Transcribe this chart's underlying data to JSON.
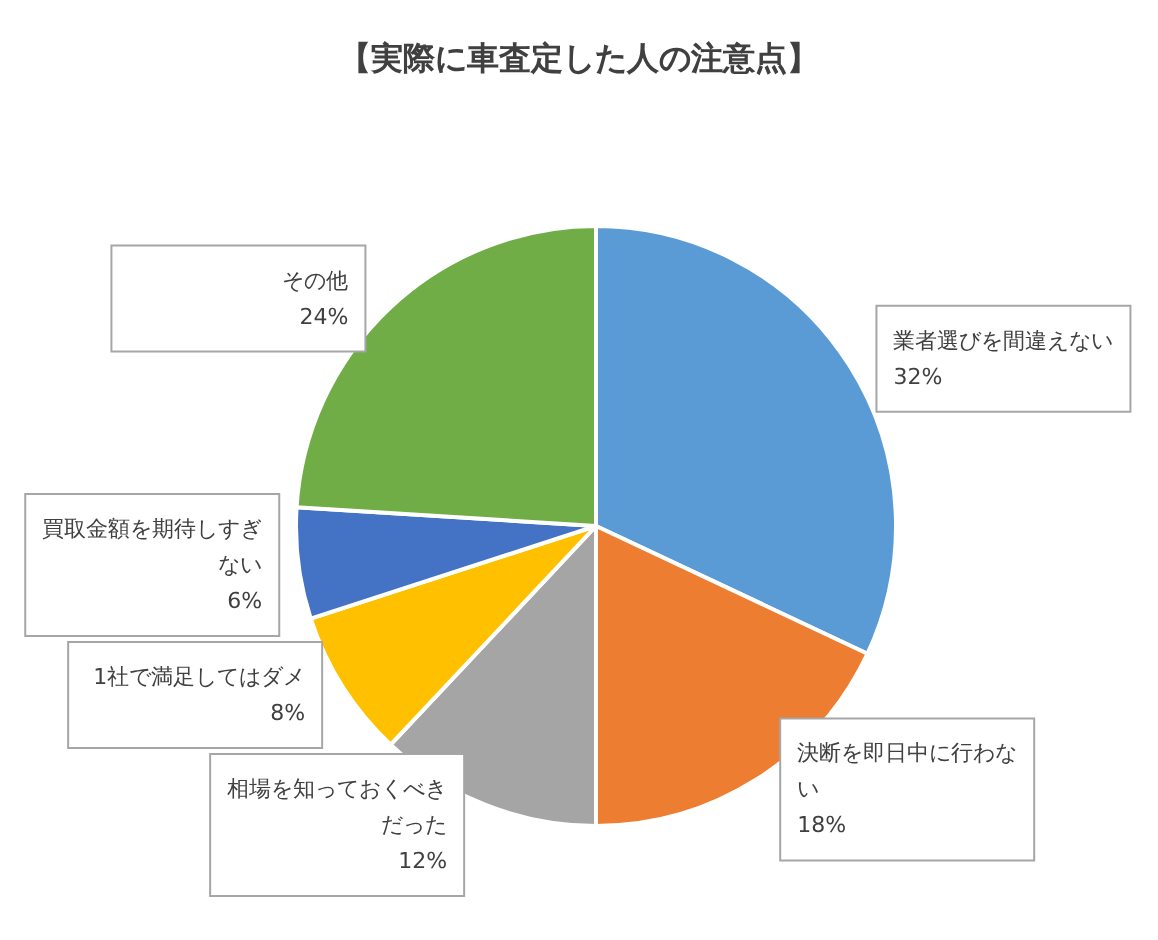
{
  "chart_data": {
    "type": "pie",
    "title": "【実際に車査定した人の注意点】",
    "categories": [
      "業者選びを間違えない",
      "決断を即日中に行わない",
      "相場を知っておくべきだった",
      "1社で満足してはダメ",
      "買取金額を期待しすぎない",
      "その他"
    ],
    "values": [
      32,
      18,
      12,
      8,
      6,
      24
    ],
    "colors": [
      "#5b9bd5",
      "#ed7d31",
      "#a5a5a5",
      "#ffc000",
      "#4472c4",
      "#70ad47"
    ],
    "value_labels": [
      "32%",
      "18%",
      "12%",
      "8%",
      "6%",
      "24%"
    ]
  }
}
